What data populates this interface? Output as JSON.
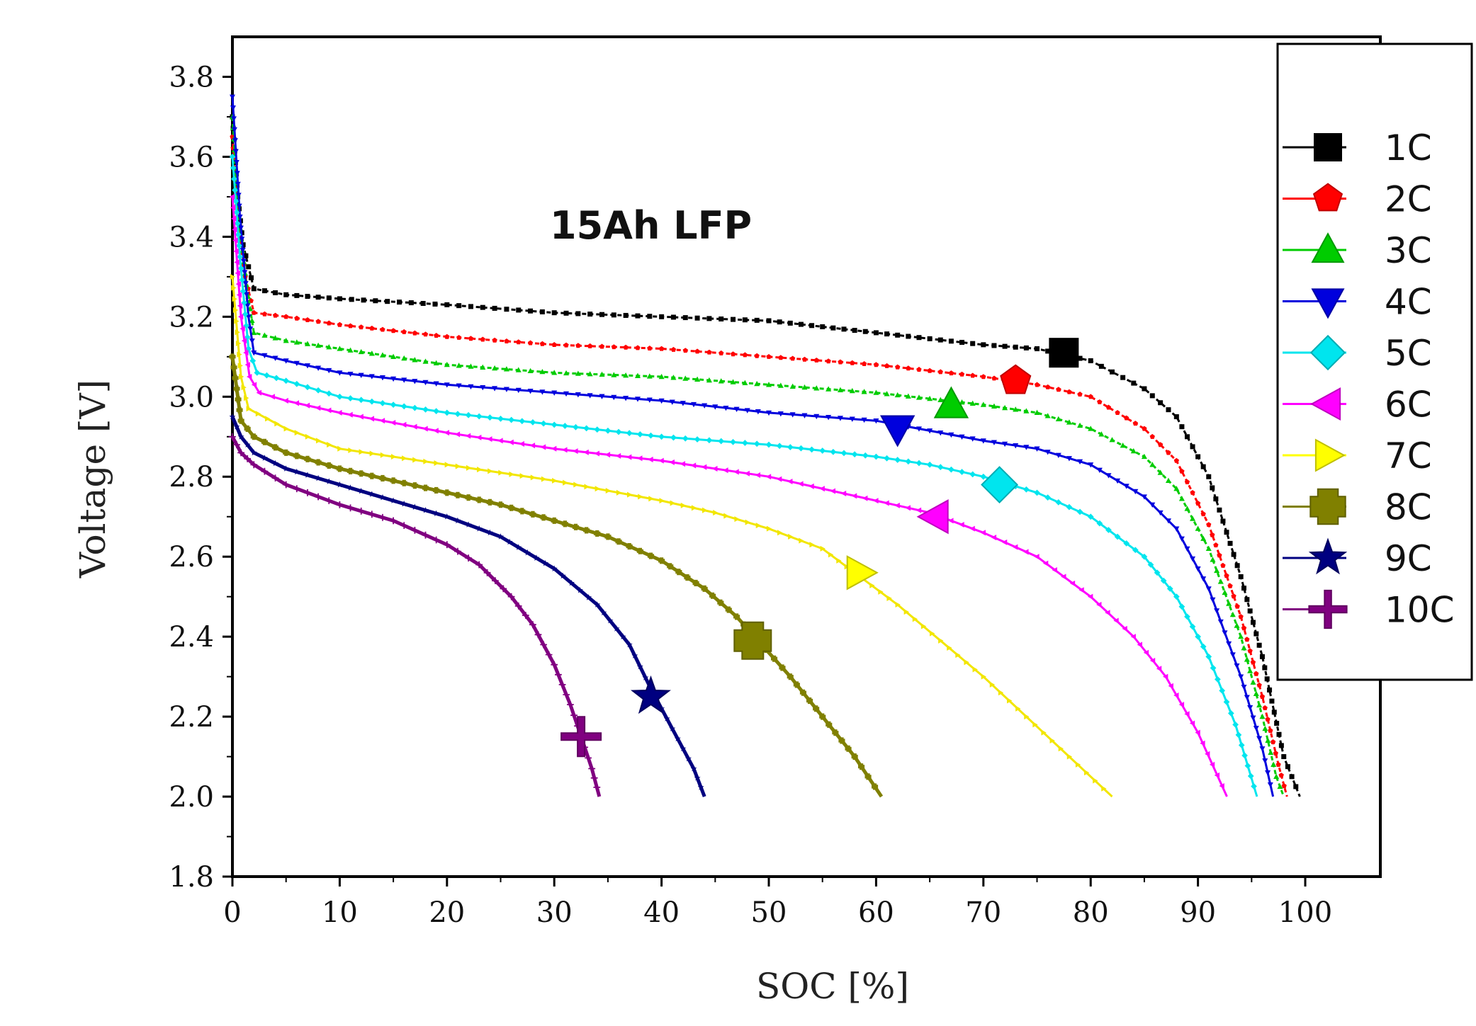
{
  "chart_data": {
    "type": "line",
    "title": "",
    "annotation": "15Ah LFP",
    "xlabel": "SOC [%]",
    "ylabel": "Voltage [V]",
    "xlim": [
      0,
      107
    ],
    "ylim": [
      1.8,
      3.9
    ],
    "x_ticks": [
      "0",
      "10",
      "20",
      "30",
      "40",
      "50",
      "60",
      "70",
      "80",
      "90",
      "100"
    ],
    "y_ticks": [
      "1.8",
      "2.0",
      "2.2",
      "2.4",
      "2.6",
      "2.8",
      "3.0",
      "3.2",
      "3.4",
      "3.6",
      "3.8"
    ],
    "grid": false,
    "legend_position": "top-right",
    "series": [
      {
        "name": "1C",
        "color": "#000000",
        "marker": "square",
        "marker_at": [
          77.5,
          3.11
        ],
        "points": [
          [
            0,
            3.7
          ],
          [
            0.5,
            3.5
          ],
          [
            1,
            3.38
          ],
          [
            2,
            3.27
          ],
          [
            5,
            3.255
          ],
          [
            10,
            3.245
          ],
          [
            20,
            3.23
          ],
          [
            30,
            3.21
          ],
          [
            40,
            3.2
          ],
          [
            50,
            3.19
          ],
          [
            60,
            3.16
          ],
          [
            70,
            3.13
          ],
          [
            75,
            3.12
          ],
          [
            80,
            3.09
          ],
          [
            85,
            3.02
          ],
          [
            88,
            2.95
          ],
          [
            91,
            2.8
          ],
          [
            94,
            2.55
          ],
          [
            96,
            2.35
          ],
          [
            98,
            2.1
          ],
          [
            99.5,
            2.0
          ]
        ]
      },
      {
        "name": "2C",
        "color": "#ff0000",
        "marker": "pentagon",
        "marker_at": [
          73,
          3.04
        ],
        "points": [
          [
            0,
            3.65
          ],
          [
            0.5,
            3.45
          ],
          [
            1.2,
            3.3
          ],
          [
            2,
            3.21
          ],
          [
            5,
            3.2
          ],
          [
            10,
            3.18
          ],
          [
            20,
            3.15
          ],
          [
            30,
            3.13
          ],
          [
            40,
            3.12
          ],
          [
            50,
            3.1
          ],
          [
            60,
            3.08
          ],
          [
            70,
            3.05
          ],
          [
            75,
            3.03
          ],
          [
            80,
            3.0
          ],
          [
            85,
            2.92
          ],
          [
            88,
            2.84
          ],
          [
            91,
            2.68
          ],
          [
            94,
            2.45
          ],
          [
            96,
            2.25
          ],
          [
            97.5,
            2.08
          ],
          [
            98.3,
            2.0
          ]
        ]
      },
      {
        "name": "3C",
        "color": "#00cc00",
        "marker": "triangle-up",
        "marker_at": [
          67,
          2.98
        ],
        "points": [
          [
            0,
            3.7
          ],
          [
            0.6,
            3.45
          ],
          [
            1.3,
            3.28
          ],
          [
            2,
            3.16
          ],
          [
            5,
            3.14
          ],
          [
            10,
            3.12
          ],
          [
            20,
            3.08
          ],
          [
            30,
            3.06
          ],
          [
            40,
            3.05
          ],
          [
            50,
            3.03
          ],
          [
            60,
            3.01
          ],
          [
            70,
            2.98
          ],
          [
            75,
            2.96
          ],
          [
            80,
            2.92
          ],
          [
            85,
            2.85
          ],
          [
            88,
            2.77
          ],
          [
            91,
            2.62
          ],
          [
            94,
            2.4
          ],
          [
            96,
            2.2
          ],
          [
            97.3,
            2.05
          ],
          [
            98,
            2.0
          ]
        ]
      },
      {
        "name": "4C",
        "color": "#0000dd",
        "marker": "triangle-down",
        "marker_at": [
          62,
          2.92
        ],
        "points": [
          [
            0,
            3.75
          ],
          [
            0.7,
            3.45
          ],
          [
            1.5,
            3.2
          ],
          [
            2,
            3.11
          ],
          [
            5,
            3.09
          ],
          [
            10,
            3.06
          ],
          [
            20,
            3.03
          ],
          [
            30,
            3.01
          ],
          [
            40,
            2.99
          ],
          [
            50,
            2.96
          ],
          [
            60,
            2.94
          ],
          [
            70,
            2.89
          ],
          [
            75,
            2.87
          ],
          [
            80,
            2.83
          ],
          [
            85,
            2.75
          ],
          [
            88,
            2.67
          ],
          [
            91,
            2.52
          ],
          [
            94,
            2.3
          ],
          [
            96,
            2.12
          ],
          [
            97,
            2.0
          ]
        ]
      },
      {
        "name": "5C",
        "color": "#00e5ee",
        "marker": "diamond",
        "marker_at": [
          71.5,
          2.78
        ],
        "points": [
          [
            0,
            3.6
          ],
          [
            0.7,
            3.35
          ],
          [
            1.5,
            3.12
          ],
          [
            2.3,
            3.06
          ],
          [
            5,
            3.04
          ],
          [
            10,
            3.0
          ],
          [
            20,
            2.96
          ],
          [
            30,
            2.93
          ],
          [
            40,
            2.9
          ],
          [
            50,
            2.88
          ],
          [
            60,
            2.85
          ],
          [
            65,
            2.83
          ],
          [
            70,
            2.8
          ],
          [
            75,
            2.76
          ],
          [
            80,
            2.7
          ],
          [
            85,
            2.6
          ],
          [
            88,
            2.5
          ],
          [
            91,
            2.35
          ],
          [
            93.5,
            2.18
          ],
          [
            95.5,
            2.0
          ]
        ]
      },
      {
        "name": "6C",
        "color": "#ff00ff",
        "marker": "triangle-left",
        "marker_at": [
          65.5,
          2.7
        ],
        "points": [
          [
            0,
            3.5
          ],
          [
            0.8,
            3.2
          ],
          [
            1.6,
            3.05
          ],
          [
            2.5,
            3.01
          ],
          [
            5,
            2.99
          ],
          [
            10,
            2.96
          ],
          [
            20,
            2.91
          ],
          [
            30,
            2.87
          ],
          [
            40,
            2.84
          ],
          [
            50,
            2.8
          ],
          [
            60,
            2.74
          ],
          [
            65,
            2.71
          ],
          [
            70,
            2.66
          ],
          [
            75,
            2.6
          ],
          [
            80,
            2.5
          ],
          [
            84,
            2.4
          ],
          [
            87,
            2.3
          ],
          [
            90,
            2.16
          ],
          [
            92.7,
            2.0
          ]
        ]
      },
      {
        "name": "7C",
        "color": "#ffff00",
        "marker": "triangle-right",
        "marker_at": [
          58.5,
          2.56
        ],
        "points": [
          [
            0,
            3.3
          ],
          [
            0.8,
            3.05
          ],
          [
            1.5,
            2.97
          ],
          [
            5,
            2.92
          ],
          [
            10,
            2.87
          ],
          [
            20,
            2.83
          ],
          [
            30,
            2.79
          ],
          [
            40,
            2.74
          ],
          [
            45,
            2.71
          ],
          [
            50,
            2.67
          ],
          [
            55,
            2.62
          ],
          [
            58,
            2.56
          ],
          [
            62,
            2.48
          ],
          [
            66,
            2.39
          ],
          [
            70,
            2.3
          ],
          [
            74,
            2.2
          ],
          [
            78,
            2.1
          ],
          [
            82,
            2.0
          ]
        ]
      },
      {
        "name": "8C",
        "color": "#808000",
        "marker": "plus-square",
        "marker_at": [
          48.5,
          2.39
        ],
        "points": [
          [
            0,
            3.1
          ],
          [
            0.8,
            2.94
          ],
          [
            2,
            2.9
          ],
          [
            5,
            2.86
          ],
          [
            10,
            2.82
          ],
          [
            15,
            2.79
          ],
          [
            20,
            2.76
          ],
          [
            25,
            2.73
          ],
          [
            30,
            2.69
          ],
          [
            35,
            2.65
          ],
          [
            40,
            2.59
          ],
          [
            44,
            2.52
          ],
          [
            47,
            2.45
          ],
          [
            49,
            2.39
          ],
          [
            52,
            2.3
          ],
          [
            55,
            2.2
          ],
          [
            58,
            2.1
          ],
          [
            60.5,
            2.0
          ]
        ]
      },
      {
        "name": "9C",
        "color": "#000080",
        "marker": "star",
        "marker_at": [
          39,
          2.25
        ],
        "points": [
          [
            0,
            2.95
          ],
          [
            0.8,
            2.9
          ],
          [
            2,
            2.86
          ],
          [
            5,
            2.82
          ],
          [
            10,
            2.78
          ],
          [
            15,
            2.74
          ],
          [
            20,
            2.7
          ],
          [
            25,
            2.65
          ],
          [
            30,
            2.57
          ],
          [
            34,
            2.48
          ],
          [
            37,
            2.38
          ],
          [
            39,
            2.27
          ],
          [
            41,
            2.17
          ],
          [
            43,
            2.07
          ],
          [
            44,
            2.0
          ]
        ]
      },
      {
        "name": "10C",
        "color": "#800080",
        "marker": "plus",
        "marker_at": [
          32.5,
          2.15
        ],
        "points": [
          [
            0,
            2.9
          ],
          [
            0.8,
            2.86
          ],
          [
            2,
            2.83
          ],
          [
            5,
            2.78
          ],
          [
            10,
            2.73
          ],
          [
            15,
            2.69
          ],
          [
            20,
            2.63
          ],
          [
            23,
            2.58
          ],
          [
            26,
            2.5
          ],
          [
            28,
            2.43
          ],
          [
            30,
            2.33
          ],
          [
            31.5,
            2.23
          ],
          [
            32.5,
            2.15
          ],
          [
            33.5,
            2.07
          ],
          [
            34.2,
            2.0
          ]
        ]
      }
    ]
  }
}
